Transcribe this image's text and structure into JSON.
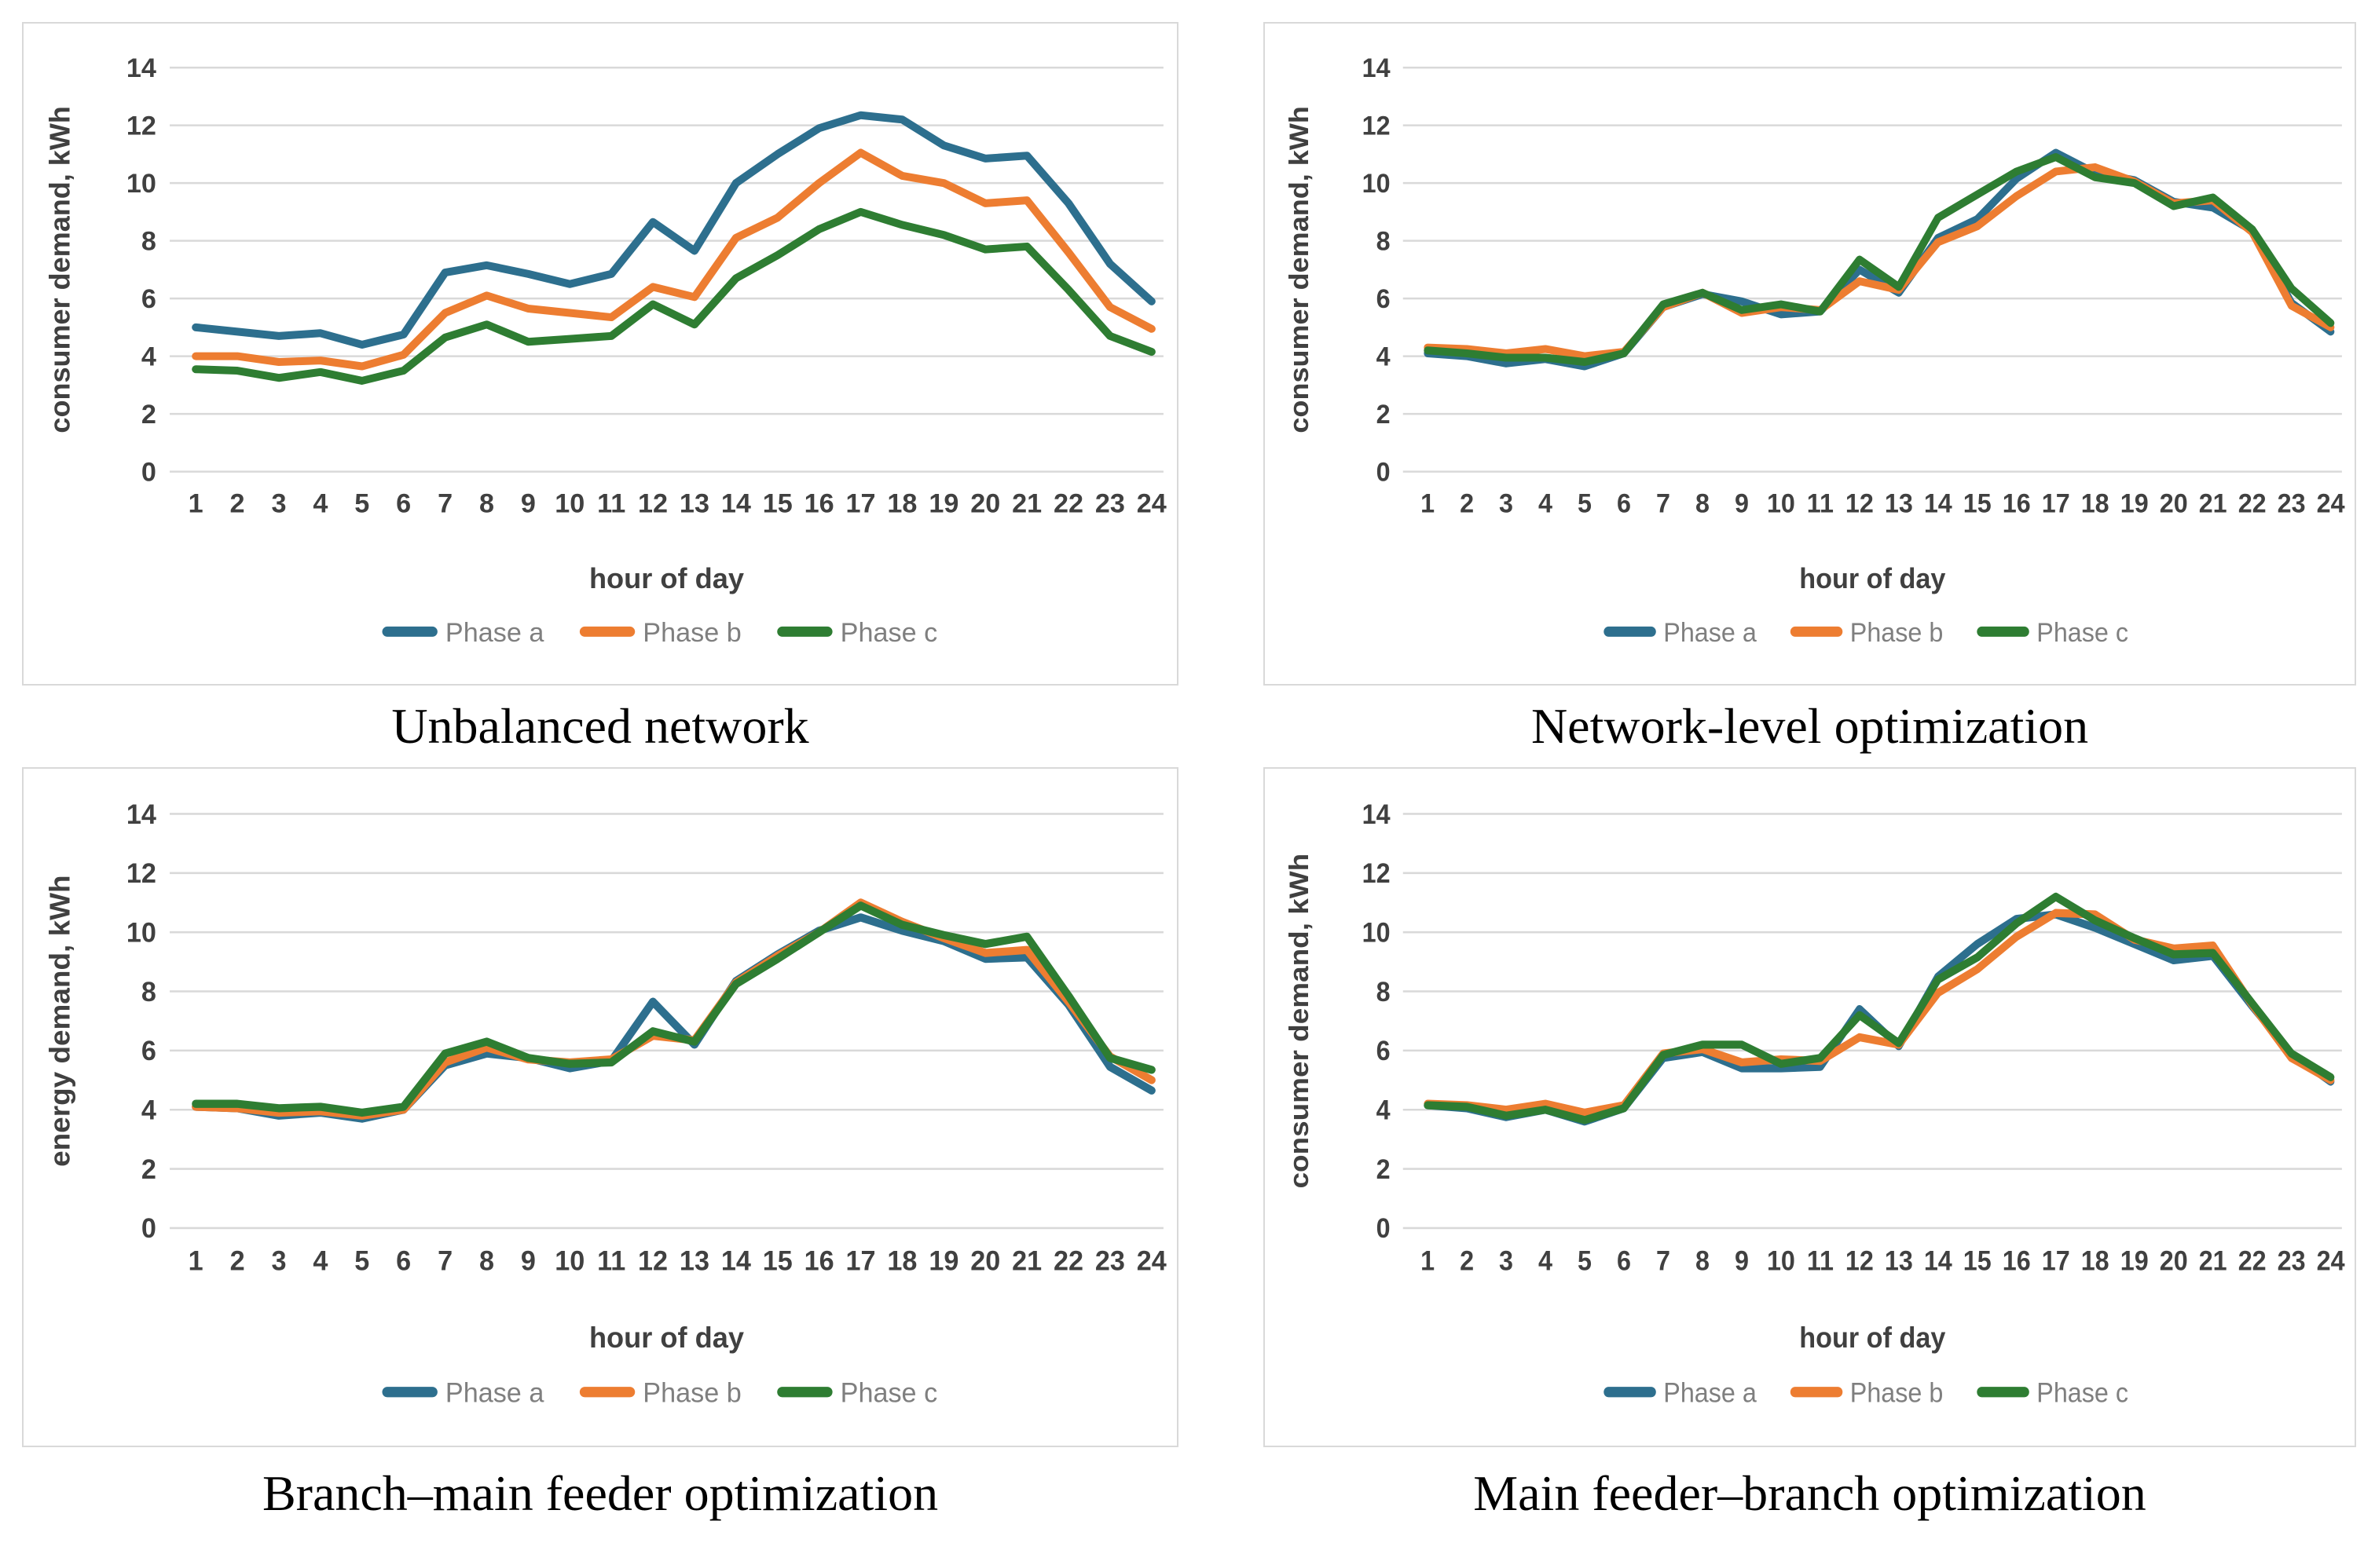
{
  "page": {
    "background": "#ffffff"
  },
  "colors": {
    "phase_a": "#2d6f8e",
    "phase_b": "#ed7d31",
    "phase_c": "#2e7d32",
    "grid": "#d9d9d9",
    "axis_text": "#404040",
    "legend_text": "#7f7f7f",
    "panel_border": "#d9d9d9",
    "caption_color": "#000000"
  },
  "chart_data": [
    {
      "type": "line",
      "title": "Unbalanced network",
      "xlabel": "hour of day",
      "ylabel": "consumer demand, kWh",
      "ylim": [
        0,
        14
      ],
      "ytick_step": 2,
      "grid": true,
      "legend_position": "bottom",
      "categories": [
        1,
        2,
        3,
        4,
        5,
        6,
        7,
        8,
        9,
        10,
        11,
        12,
        13,
        14,
        15,
        16,
        17,
        18,
        19,
        20,
        21,
        22,
        23,
        24
      ],
      "series": [
        {
          "name": "Phase a",
          "color_key": "phase_a",
          "values": [
            5.0,
            4.85,
            4.7,
            4.8,
            4.4,
            4.75,
            6.9,
            7.15,
            6.85,
            6.5,
            6.85,
            8.65,
            7.65,
            10.0,
            11.0,
            11.9,
            12.35,
            12.2,
            11.3,
            10.85,
            10.95,
            9.3,
            7.2,
            5.9
          ]
        },
        {
          "name": "Phase b",
          "color_key": "phase_b",
          "values": [
            4.0,
            4.0,
            3.8,
            3.85,
            3.65,
            4.05,
            5.5,
            6.1,
            5.65,
            5.5,
            5.35,
            6.4,
            6.05,
            8.1,
            8.8,
            10.0,
            11.05,
            10.25,
            10.0,
            9.3,
            9.4,
            7.6,
            5.7,
            4.95
          ]
        },
        {
          "name": "Phase c",
          "color_key": "phase_c",
          "values": [
            3.55,
            3.5,
            3.25,
            3.45,
            3.15,
            3.5,
            4.65,
            5.1,
            4.5,
            4.6,
            4.7,
            5.8,
            5.1,
            6.7,
            7.5,
            8.4,
            9.0,
            8.55,
            8.2,
            7.7,
            7.8,
            6.3,
            4.7,
            4.15
          ]
        }
      ]
    },
    {
      "type": "line",
      "title": "Network-level optimization",
      "xlabel": "hour of day",
      "ylabel": "consumer demand, kWh",
      "ylim": [
        0,
        14
      ],
      "ytick_step": 2,
      "grid": true,
      "legend_position": "bottom",
      "categories": [
        1,
        2,
        3,
        4,
        5,
        6,
        7,
        8,
        9,
        10,
        11,
        12,
        13,
        14,
        15,
        16,
        17,
        18,
        19,
        20,
        21,
        22,
        23,
        24
      ],
      "series": [
        {
          "name": "Phase a",
          "color_key": "phase_a",
          "values": [
            4.1,
            4.0,
            3.75,
            3.9,
            3.65,
            4.1,
            5.7,
            6.15,
            5.9,
            5.45,
            5.55,
            7.0,
            6.2,
            8.1,
            8.75,
            10.15,
            11.05,
            10.35,
            10.1,
            9.35,
            9.15,
            8.35,
            5.85,
            4.85
          ]
        },
        {
          "name": "Phase b",
          "color_key": "phase_b",
          "values": [
            4.3,
            4.25,
            4.1,
            4.25,
            4.0,
            4.15,
            5.7,
            6.2,
            5.5,
            5.7,
            5.6,
            6.6,
            6.3,
            7.95,
            8.5,
            9.55,
            10.4,
            10.55,
            10.05,
            9.3,
            9.4,
            8.3,
            5.75,
            5.0
          ]
        },
        {
          "name": "Phase c",
          "color_key": "phase_c",
          "values": [
            4.2,
            4.1,
            3.95,
            3.95,
            3.8,
            4.1,
            5.8,
            6.2,
            5.6,
            5.8,
            5.55,
            7.35,
            6.4,
            8.8,
            9.6,
            10.4,
            10.9,
            10.2,
            10.0,
            9.2,
            9.5,
            8.4,
            6.35,
            5.15
          ]
        }
      ]
    },
    {
      "type": "line",
      "title": "Branch–main feeder optimization",
      "xlabel": "hour of day",
      "ylabel": "energy demand, kWh",
      "ylim": [
        0,
        14
      ],
      "ytick_step": 2,
      "grid": true,
      "legend_position": "bottom",
      "categories": [
        1,
        2,
        3,
        4,
        5,
        6,
        7,
        8,
        9,
        10,
        11,
        12,
        13,
        14,
        15,
        16,
        17,
        18,
        19,
        20,
        21,
        22,
        23,
        24
      ],
      "series": [
        {
          "name": "Phase a",
          "color_key": "phase_a",
          "values": [
            4.1,
            4.05,
            3.8,
            3.9,
            3.7,
            4.0,
            5.5,
            5.9,
            5.75,
            5.4,
            5.65,
            7.65,
            6.2,
            8.35,
            9.25,
            10.05,
            10.5,
            10.05,
            9.7,
            9.1,
            9.15,
            7.55,
            5.45,
            4.65
          ]
        },
        {
          "name": "Phase b",
          "color_key": "phase_b",
          "values": [
            4.1,
            4.05,
            3.9,
            3.95,
            3.8,
            4.0,
            5.6,
            6.1,
            5.7,
            5.6,
            5.7,
            6.5,
            6.35,
            8.3,
            9.2,
            10.0,
            11.0,
            10.35,
            9.8,
            9.3,
            9.4,
            7.65,
            5.8,
            5.0
          ]
        },
        {
          "name": "Phase c",
          "color_key": "phase_c",
          "values": [
            4.2,
            4.2,
            4.05,
            4.1,
            3.9,
            4.1,
            5.9,
            6.3,
            5.75,
            5.55,
            5.6,
            6.65,
            6.3,
            8.25,
            9.1,
            10.0,
            10.9,
            10.25,
            9.9,
            9.6,
            9.85,
            7.85,
            5.75,
            5.35
          ]
        }
      ]
    },
    {
      "type": "line",
      "title": "Main feeder–branch optimization",
      "xlabel": "hour of day",
      "ylabel": "consumer demand, kWh",
      "ylim": [
        0,
        14
      ],
      "ytick_step": 2,
      "grid": true,
      "legend_position": "bottom",
      "categories": [
        1,
        2,
        3,
        4,
        5,
        6,
        7,
        8,
        9,
        10,
        11,
        12,
        13,
        14,
        15,
        16,
        17,
        18,
        19,
        20,
        21,
        22,
        23,
        24
      ],
      "series": [
        {
          "name": "Phase a",
          "color_key": "phase_a",
          "values": [
            4.15,
            4.05,
            3.75,
            4.0,
            3.6,
            4.05,
            5.75,
            5.95,
            5.4,
            5.4,
            5.45,
            7.4,
            6.15,
            8.5,
            9.6,
            10.45,
            10.6,
            10.15,
            9.6,
            9.05,
            9.2,
            7.5,
            5.9,
            4.95
          ]
        },
        {
          "name": "Phase b",
          "color_key": "phase_b",
          "values": [
            4.2,
            4.15,
            4.0,
            4.2,
            3.9,
            4.15,
            5.9,
            6.05,
            5.6,
            5.7,
            5.65,
            6.45,
            6.2,
            7.95,
            8.75,
            9.85,
            10.65,
            10.6,
            9.75,
            9.45,
            9.55,
            7.55,
            5.75,
            5.0
          ]
        },
        {
          "name": "Phase c",
          "color_key": "phase_c",
          "values": [
            4.15,
            4.1,
            3.8,
            4.0,
            3.65,
            4.05,
            5.85,
            6.2,
            6.2,
            5.55,
            5.75,
            7.2,
            6.25,
            8.4,
            9.15,
            10.3,
            11.2,
            10.4,
            9.8,
            9.25,
            9.3,
            7.6,
            5.9,
            5.1
          ]
        }
      ]
    }
  ]
}
